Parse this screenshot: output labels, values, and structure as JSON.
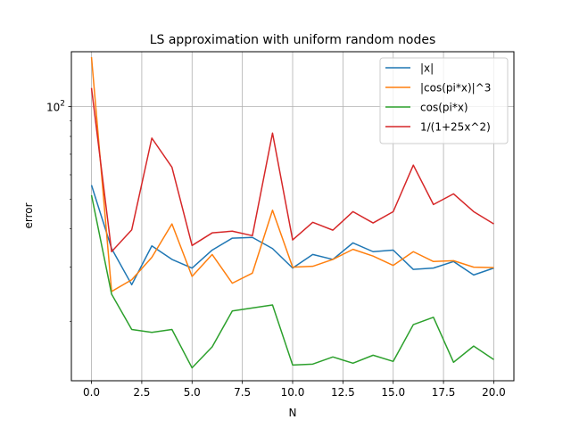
{
  "chart_data": {
    "type": "line",
    "title": "LS approximation with uniform random nodes",
    "xlabel": "N",
    "ylabel": "error",
    "yscale": "log",
    "grid": true,
    "xlim": [
      -1,
      21
    ],
    "ylim": [
      12.8,
      151
    ],
    "xticks": [
      0.0,
      2.5,
      5.0,
      7.5,
      10.0,
      12.5,
      15.0,
      17.5,
      20.0
    ],
    "xtick_labels": [
      "0.0",
      "2.5",
      "5.0",
      "7.5",
      "10.0",
      "12.5",
      "15.0",
      "17.5",
      "20.0"
    ],
    "yticks": [
      100
    ],
    "ytick_labels": [
      "10^2"
    ],
    "legend_position": "upper right",
    "x": [
      0,
      1,
      2,
      3,
      4,
      5,
      6,
      7,
      8,
      9,
      10,
      11,
      12,
      13,
      14,
      15,
      16,
      17,
      18,
      19,
      20
    ],
    "series": [
      {
        "name": "|x|",
        "color": "#1f77b4",
        "values": [
          55.5,
          34.5,
          26.3,
          35.2,
          31.8,
          29.8,
          34.1,
          37.3,
          37.5,
          34.5,
          29.8,
          33.0,
          31.8,
          36.0,
          33.7,
          34.1,
          29.5,
          29.8,
          31.3,
          28.3,
          29.8
        ]
      },
      {
        "name": "|cos(pi*x)|^3",
        "color": "#ff7f0e",
        "values": [
          145.0,
          25.0,
          27.3,
          32.3,
          41.5,
          28.0,
          33.0,
          26.6,
          28.7,
          46.0,
          30.0,
          30.2,
          31.8,
          34.3,
          32.6,
          30.4,
          33.7,
          31.3,
          31.5,
          30.0,
          29.9
        ]
      },
      {
        "name": "cos(pi*x)",
        "color": "#2ca02c",
        "values": [
          51.5,
          24.5,
          18.8,
          18.4,
          18.8,
          14.1,
          16.5,
          21.6,
          22.1,
          22.6,
          14.4,
          14.5,
          15.3,
          14.6,
          15.5,
          14.8,
          19.5,
          20.6,
          14.7,
          16.6,
          15.0
        ]
      },
      {
        "name": "1/(1+25x^2)",
        "color": "#d62728",
        "values": [
          115.0,
          33.7,
          39.7,
          79.0,
          63.5,
          35.3,
          38.8,
          39.3,
          38.0,
          82.0,
          36.8,
          42.0,
          39.6,
          45.5,
          41.8,
          45.5,
          64.5,
          48.0,
          52.0,
          45.5,
          41.5
        ]
      }
    ]
  }
}
